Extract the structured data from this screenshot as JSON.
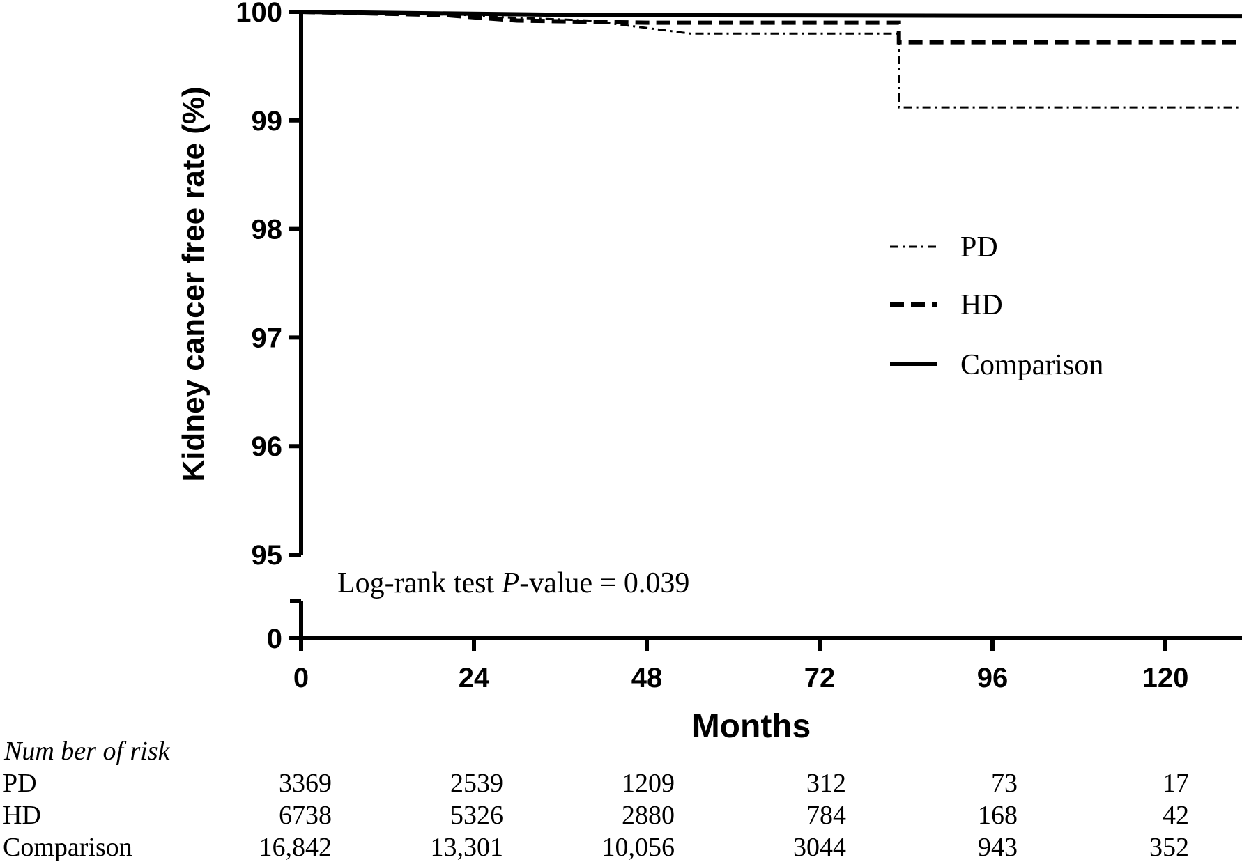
{
  "chart_data": {
    "type": "line",
    "title": "",
    "xlabel": "Months",
    "ylabel": "Kidney cancer free rate (%)",
    "xlim": [
      0,
      132
    ],
    "x_ticks": [
      0,
      24,
      48,
      72,
      96,
      120
    ],
    "x_tick_labels": [
      "0",
      "24",
      "48",
      "72",
      "96",
      "120"
    ],
    "ylim": [
      95,
      100
    ],
    "y_ticks": [
      95,
      96,
      97,
      98,
      99,
      100
    ],
    "y_tick_labels": [
      "95",
      "96",
      "97",
      "98",
      "99",
      "100"
    ],
    "y_axis_break": {
      "lower_tick": 0,
      "lower_tick_label": "0"
    },
    "grid": false,
    "legend_position": "right",
    "series": [
      {
        "name": "PD",
        "style": "dash-dot",
        "points": [
          [
            0,
            100
          ],
          [
            18,
            99.99
          ],
          [
            28,
            99.95
          ],
          [
            40,
            99.92
          ],
          [
            54,
            99.8
          ],
          [
            83,
            99.8
          ],
          [
            83,
            99.12
          ],
          [
            132,
            99.12
          ]
        ]
      },
      {
        "name": "HD",
        "style": "dashed",
        "points": [
          [
            0,
            100
          ],
          [
            20,
            99.97
          ],
          [
            30,
            99.92
          ],
          [
            48,
            99.9
          ],
          [
            83,
            99.9
          ],
          [
            83,
            99.72
          ],
          [
            132,
            99.72
          ]
        ]
      },
      {
        "name": "Comparison",
        "style": "solid",
        "points": [
          [
            0,
            100
          ],
          [
            40,
            99.97
          ],
          [
            132,
            99.96
          ]
        ]
      }
    ],
    "annotation": {
      "prefix": "Log-rank test ",
      "p_symbol": "P",
      "suffix": "-value = 0.039"
    },
    "risk_table": {
      "title": "Num ber of risk",
      "rows": [
        {
          "label": "PD",
          "values": [
            "3369",
            "2539",
            "1209",
            "312",
            "73",
            "17"
          ]
        },
        {
          "label": "HD",
          "values": [
            "6738",
            "5326",
            "2880",
            "784",
            "168",
            "42"
          ]
        },
        {
          "label": "Comparison",
          "values": [
            "16,842",
            "13,301",
            "10,056",
            "3044",
            "943",
            "352"
          ]
        }
      ]
    }
  }
}
